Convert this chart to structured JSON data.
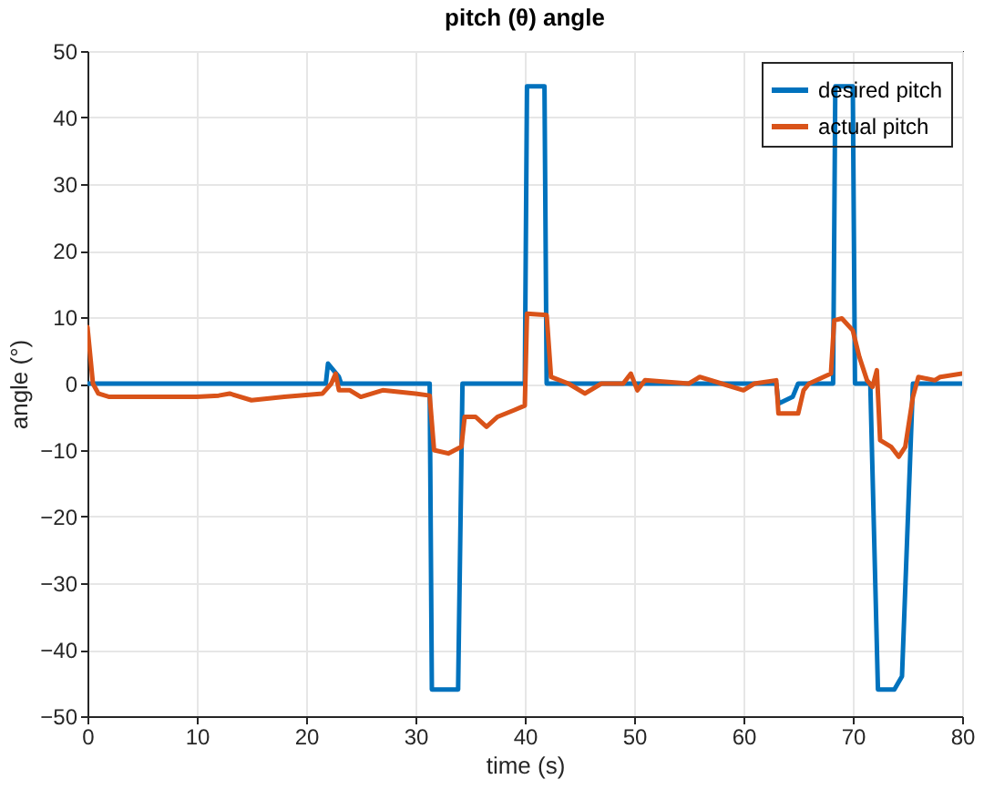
{
  "chart_data": {
    "type": "line",
    "title": "pitch (θ) angle",
    "xlabel": "time (s)",
    "ylabel": "angle (°)",
    "xlim": [
      0,
      80
    ],
    "ylim": [
      -50,
      50
    ],
    "xticks": [
      0,
      10,
      20,
      30,
      40,
      50,
      60,
      70,
      80
    ],
    "yticks": [
      -50,
      -40,
      -30,
      -20,
      -10,
      0,
      10,
      20,
      30,
      40,
      50
    ],
    "grid": true,
    "legend": "top right",
    "marker": "none",
    "line_style": "solid",
    "series": [
      {
        "name": "desired pitch",
        "color": "#0072bd",
        "x": [
          0,
          21.8,
          22,
          23,
          23.2,
          31.3,
          31.5,
          33.9,
          34.3,
          40,
          40.2,
          41.8,
          42,
          63,
          63.2,
          64.5,
          65,
          68.2,
          68.4,
          70,
          70.2,
          71.6,
          72.3,
          73.8,
          74.5,
          75.5,
          80
        ],
        "values": [
          0,
          0,
          3,
          1,
          0,
          0,
          -46,
          -46,
          0,
          0,
          44.7,
          44.7,
          0,
          0,
          -3,
          -2,
          0,
          0,
          44.7,
          44.7,
          0,
          0,
          -46,
          -46,
          -44,
          0,
          0
        ]
      },
      {
        "name": "actual pitch",
        "color": "#d95319",
        "x": [
          0,
          0.5,
          1,
          2,
          10,
          12,
          13,
          15,
          18,
          21.5,
          22.3,
          22.7,
          23,
          24,
          25,
          27,
          30,
          31.3,
          31.7,
          33,
          34.2,
          34.5,
          35.5,
          36.5,
          37.5,
          39,
          40,
          40.2,
          42,
          42.4,
          44,
          45.5,
          47,
          49,
          49.7,
          50.3,
          51,
          55,
          56,
          58,
          60,
          61,
          63,
          63.2,
          65,
          65.5,
          66,
          68,
          68.3,
          69,
          70,
          70.6,
          71.3,
          71.8,
          72.2,
          72.5,
          73.5,
          74.2,
          74.8,
          75.5,
          76,
          77.5,
          78,
          80
        ],
        "values": [
          8.5,
          0,
          -1.5,
          -2,
          -2,
          -1.8,
          -1.5,
          -2.5,
          -2,
          -1.5,
          0,
          1.5,
          -1,
          -1,
          -2,
          -1,
          -1.5,
          -1.8,
          -10,
          -10.5,
          -9.5,
          -5,
          -5,
          -6.5,
          -5,
          -4,
          -3.3,
          10.5,
          10.3,
          1,
          0,
          -1.5,
          0,
          0,
          1.5,
          -1,
          0.5,
          0,
          1,
          0,
          -1,
          0,
          0.5,
          -4.5,
          -4.5,
          -1,
          0,
          1.5,
          9.5,
          9.8,
          8,
          4,
          0.5,
          -0.5,
          2,
          -8.5,
          -9.5,
          -11,
          -9.5,
          -2,
          1,
          0.5,
          1,
          1.5
        ]
      }
    ]
  }
}
